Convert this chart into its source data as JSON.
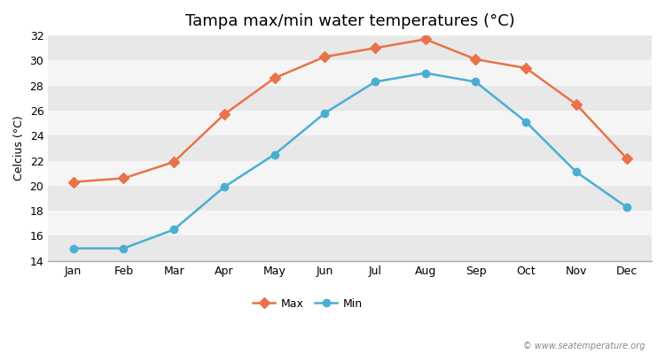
{
  "title": "Tampa max/min water temperatures (°C)",
  "ylabel": "Celcius (°C)",
  "months": [
    "Jan",
    "Feb",
    "Mar",
    "Apr",
    "May",
    "Jun",
    "Jul",
    "Aug",
    "Sep",
    "Oct",
    "Nov",
    "Dec"
  ],
  "max_temps": [
    20.3,
    20.6,
    21.9,
    25.7,
    28.6,
    30.3,
    31.0,
    31.7,
    30.1,
    29.4,
    26.5,
    22.2
  ],
  "min_temps": [
    15.0,
    15.0,
    16.5,
    19.9,
    22.5,
    25.8,
    28.3,
    29.0,
    28.3,
    25.1,
    21.1,
    18.3
  ],
  "max_color": "#e8724a",
  "min_color": "#4aaed4",
  "fig_bg_color": "#ffffff",
  "band_colors": [
    "#e8e8e8",
    "#f5f5f5"
  ],
  "ylim": [
    14,
    32
  ],
  "yticks": [
    14,
    16,
    18,
    20,
    22,
    24,
    26,
    28,
    30,
    32
  ],
  "marker_size_max": 6,
  "marker_size_min": 6,
  "line_width": 1.8,
  "title_fontsize": 13,
  "axis_label_fontsize": 9,
  "tick_fontsize": 9,
  "legend_labels": [
    "Max",
    "Min"
  ],
  "watermark": "© www.seatemperature.org"
}
